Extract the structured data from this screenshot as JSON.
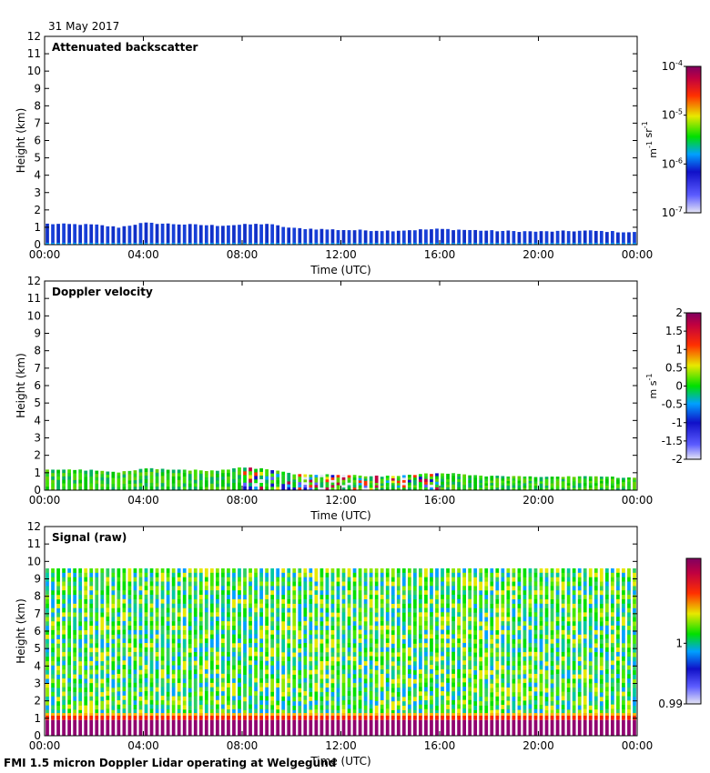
{
  "date": "31 May 2017",
  "footer": "FMI 1.5 micron Doppler Lidar operating at Welgegund",
  "chart_data": [
    {
      "type": "heatmap",
      "title": "Attenuated backscatter",
      "xlabel": "Time (UTC)",
      "ylabel": "Height (km)",
      "x_ticks": [
        "00:00",
        "04:00",
        "08:00",
        "12:00",
        "16:00",
        "20:00",
        "00:00"
      ],
      "xlim_hours": [
        0,
        24
      ],
      "y_ticks": [
        "0",
        "1",
        "2",
        "3",
        "4",
        "5",
        "6",
        "7",
        "8",
        "9",
        "10",
        "11",
        "12"
      ],
      "ylim_km": [
        0,
        12
      ],
      "colorbar": {
        "scale": "log",
        "range": [
          1e-07,
          0.0001
        ],
        "unit": "m-1 sr-1",
        "tick_values": [
          1e-07,
          1e-06,
          1e-05,
          0.0001
        ],
        "tick_labels": [
          {
            "base": "10",
            "exp": "-7"
          },
          {
            "base": "10",
            "exp": "-6"
          },
          {
            "base": "10",
            "exp": "-5"
          },
          {
            "base": "10",
            "exp": "-4"
          }
        ],
        "unit_label": [
          {
            "text": "m",
            "sup": "-1"
          },
          {
            "text": " sr",
            "sup": "-1"
          }
        ]
      },
      "layer_top_km": [
        [
          0,
          1.2
        ],
        [
          2,
          1.15
        ],
        [
          3,
          1.0
        ],
        [
          4,
          1.25
        ],
        [
          6,
          1.15
        ],
        [
          7,
          1.1
        ],
        [
          8,
          1.15
        ],
        [
          9,
          1.2
        ],
        [
          10,
          0.95
        ],
        [
          12,
          0.85
        ],
        [
          14,
          0.8
        ],
        [
          16,
          0.9
        ],
        [
          18,
          0.8
        ],
        [
          20,
          0.75
        ],
        [
          22,
          0.8
        ],
        [
          24,
          0.7
        ]
      ]
    },
    {
      "type": "heatmap",
      "title": "Doppler velocity",
      "xlabel": "Time (UTC)",
      "ylabel": "Height (km)",
      "x_ticks": [
        "00:00",
        "04:00",
        "08:00",
        "12:00",
        "16:00",
        "20:00",
        "00:00"
      ],
      "xlim_hours": [
        0,
        24
      ],
      "y_ticks": [
        "0",
        "1",
        "2",
        "3",
        "4",
        "5",
        "6",
        "7",
        "8",
        "9",
        "10",
        "11",
        "12"
      ],
      "ylim_km": [
        0,
        12
      ],
      "colorbar": {
        "scale": "linear",
        "range": [
          -2,
          2
        ],
        "unit": "m s-1",
        "tick_values": [
          -2,
          -1.5,
          -1,
          -0.5,
          0,
          0.5,
          1,
          1.5,
          2
        ],
        "tick_labels": [
          "-2",
          "-1.5",
          "-1",
          "-0.5",
          "0",
          "0.5",
          "1",
          "1.5",
          "2"
        ],
        "unit_label": [
          {
            "text": "m",
            "sup": ""
          },
          {
            "text": " s",
            "sup": "-1"
          }
        ]
      },
      "layer_top_km": [
        [
          0,
          1.2
        ],
        [
          2,
          1.15
        ],
        [
          3,
          1.0
        ],
        [
          4,
          1.25
        ],
        [
          6,
          1.15
        ],
        [
          7,
          1.1
        ],
        [
          8,
          1.3
        ],
        [
          9,
          1.2
        ],
        [
          10,
          0.95
        ],
        [
          12,
          0.85
        ],
        [
          14,
          0.8
        ],
        [
          16,
          1.0
        ],
        [
          18,
          0.8
        ],
        [
          20,
          0.75
        ],
        [
          22,
          0.8
        ],
        [
          24,
          0.7
        ]
      ],
      "turbulent_hours": [
        8,
        16
      ]
    },
    {
      "type": "heatmap",
      "title": "Signal (raw)",
      "xlabel": "Time (UTC)",
      "ylabel": "Height (km)",
      "x_ticks": [
        "00:00",
        "04:00",
        "08:00",
        "12:00",
        "16:00",
        "20:00",
        "00:00"
      ],
      "xlim_hours": [
        0,
        24
      ],
      "y_ticks": [
        "0",
        "1",
        "2",
        "3",
        "4",
        "5",
        "6",
        "7",
        "8",
        "9",
        "10",
        "11",
        "12"
      ],
      "ylim_km": [
        0,
        12
      ],
      "signal_top_km": 9.6,
      "colorbar": {
        "scale": "linear",
        "range": [
          0.99,
          1.014
        ],
        "unit": "",
        "tick_values": [
          0.99,
          1.0
        ],
        "tick_labels": [
          "0.99",
          "1"
        ],
        "unit_label": []
      }
    }
  ]
}
